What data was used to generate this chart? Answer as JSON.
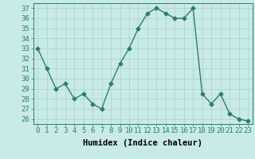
{
  "x": [
    0,
    1,
    2,
    3,
    4,
    5,
    6,
    7,
    8,
    9,
    10,
    11,
    12,
    13,
    14,
    15,
    16,
    17,
    18,
    19,
    20,
    21,
    22,
    23
  ],
  "y": [
    33,
    31,
    29,
    29.5,
    28,
    28.5,
    27.5,
    27,
    29.5,
    31.5,
    33,
    35,
    36.5,
    37,
    36.5,
    36,
    36,
    37,
    28.5,
    27.5,
    28.5,
    26.5,
    26,
    25.8
  ],
  "line_color": "#2e7d6e",
  "marker": "D",
  "marker_size": 2.5,
  "bg_color": "#c8eae8",
  "grid_color": "#aed6d2",
  "xlabel": "Humidex (Indice chaleur)",
  "ylim": [
    25.5,
    37.5
  ],
  "xlim": [
    -0.5,
    23.5
  ],
  "yticks": [
    26,
    27,
    28,
    29,
    30,
    31,
    32,
    33,
    34,
    35,
    36,
    37
  ],
  "xticks": [
    0,
    1,
    2,
    3,
    4,
    5,
    6,
    7,
    8,
    9,
    10,
    11,
    12,
    13,
    14,
    15,
    16,
    17,
    18,
    19,
    20,
    21,
    22,
    23
  ],
  "xlabel_fontsize": 7.5,
  "tick_fontsize": 6.5,
  "line_width": 1.0
}
